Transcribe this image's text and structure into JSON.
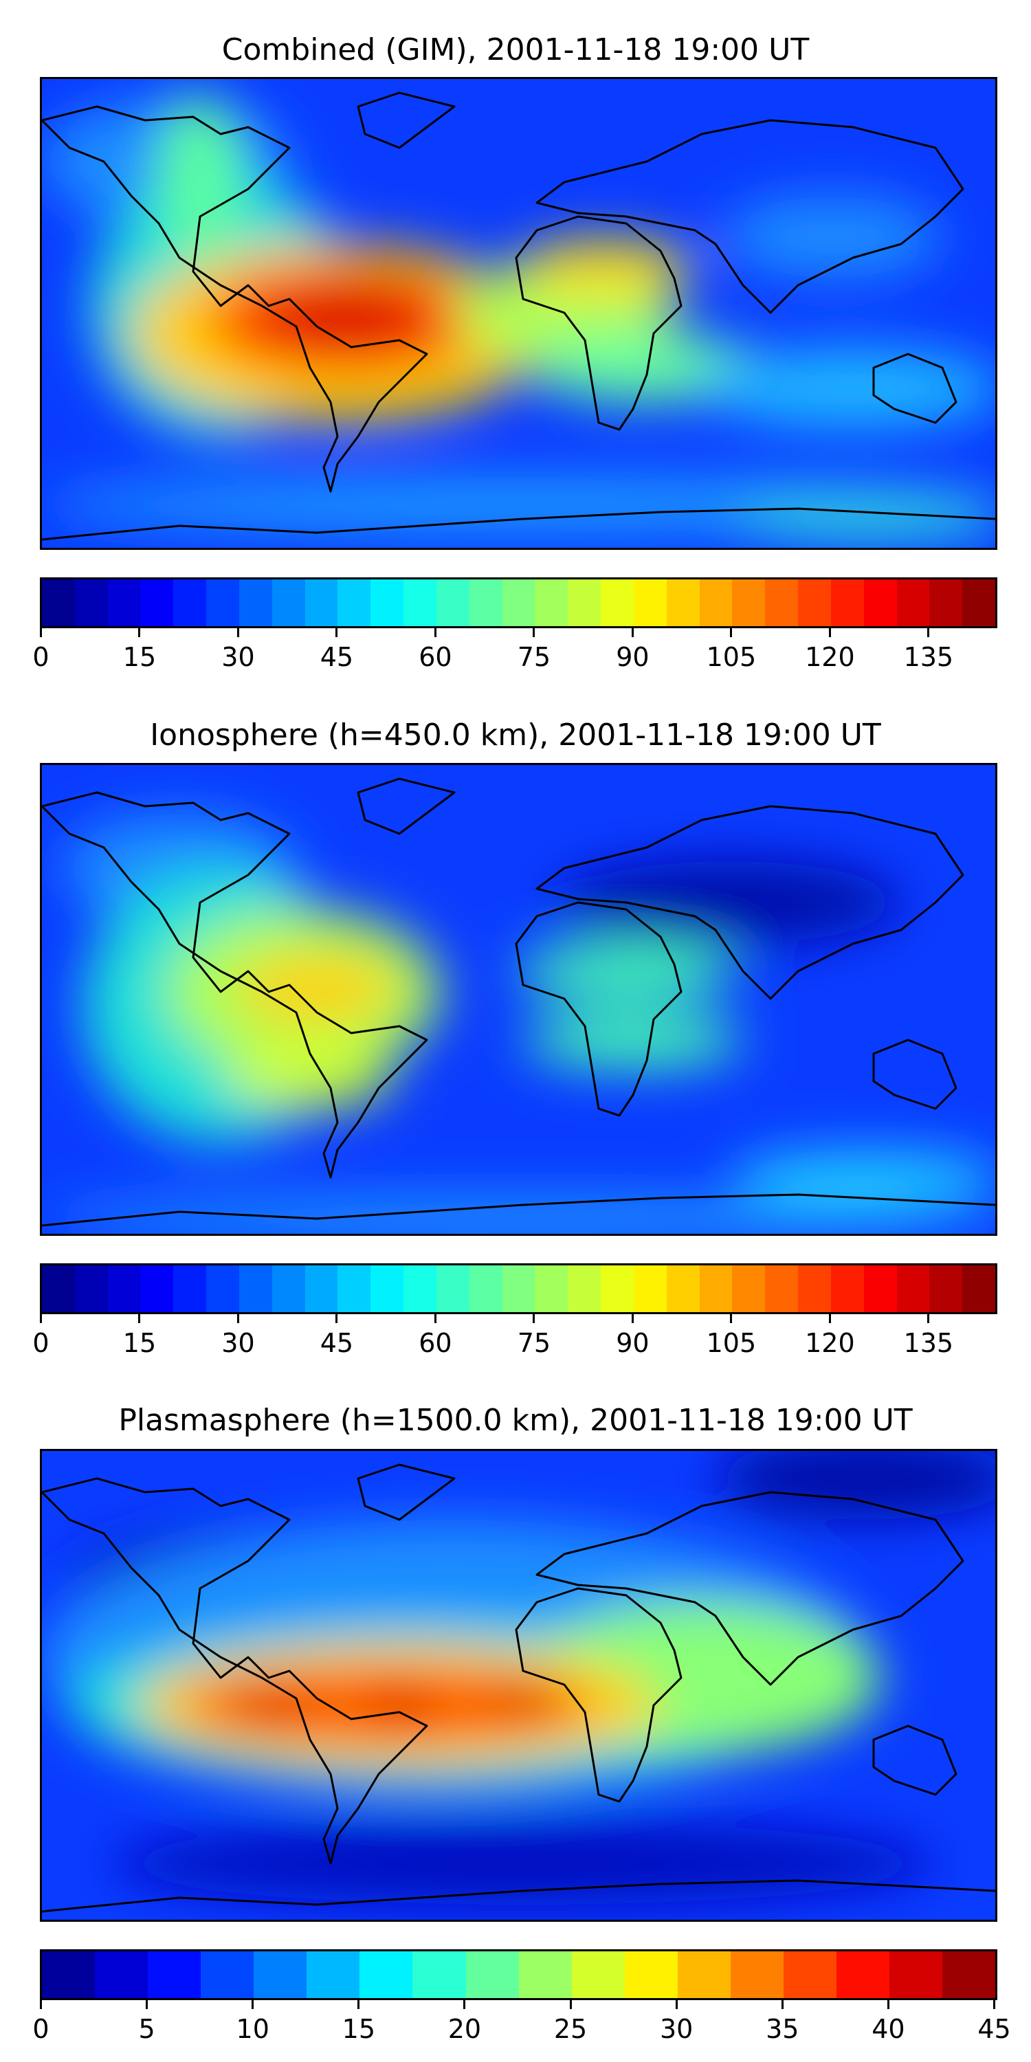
{
  "panels": [
    {
      "title": "Combined (GIM), 2001-11-18 19:00 UT",
      "colorbar": {
        "min": 0,
        "max": 145,
        "levels": 29,
        "ticks": [
          0,
          15,
          30,
          45,
          60,
          75,
          90,
          105,
          120,
          135
        ]
      }
    },
    {
      "title": "Ionosphere  (h=450.0 km), 2001-11-18 19:00 UT",
      "colorbar": {
        "min": 0,
        "max": 145,
        "levels": 29,
        "ticks": [
          0,
          15,
          30,
          45,
          60,
          75,
          90,
          105,
          120,
          135
        ]
      }
    },
    {
      "title": "Plasmasphere (h=1500.0 km), 2001-11-18 19:00 UT",
      "colorbar": {
        "min": 0,
        "max": 45,
        "levels": 18,
        "ticks": [
          0,
          5,
          10,
          15,
          20,
          25,
          30,
          35,
          40,
          45
        ]
      }
    }
  ],
  "colormap": "jet",
  "colors": {
    "background": "#0a3cff",
    "coastline": "#000000"
  }
}
